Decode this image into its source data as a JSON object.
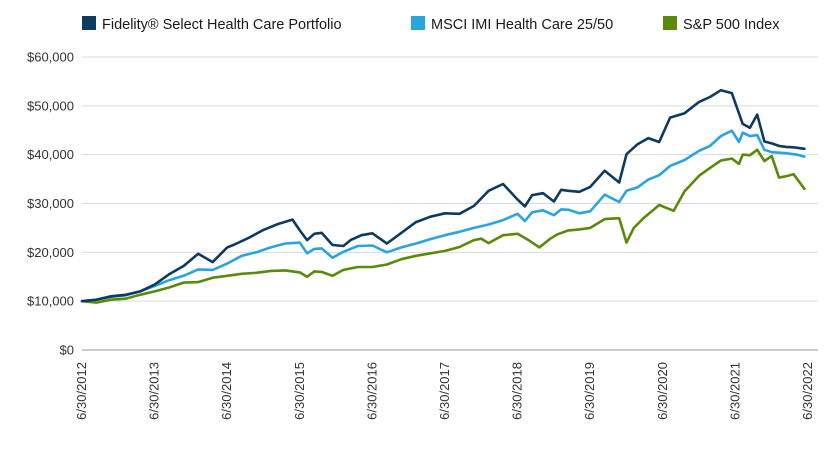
{
  "chart_data": {
    "type": "line",
    "title": "",
    "xlabel": "",
    "ylabel": "",
    "ylim": [
      0,
      60000
    ],
    "yticks": [
      0,
      10000,
      20000,
      30000,
      40000,
      50000,
      60000
    ],
    "yticklabels": [
      "$0",
      "$10,000",
      "$20,000",
      "$30,000",
      "$40,000",
      "$50,000",
      "$60,000"
    ],
    "xlim": [
      2012.5,
      2022.5
    ],
    "xticks": [
      2012.5,
      2013.5,
      2014.5,
      2015.5,
      2016.5,
      2017.5,
      2018.5,
      2019.5,
      2020.5,
      2021.5,
      2022.5
    ],
    "xticklabels": [
      "6/30/2012",
      "6/30/2013",
      "6/30/2014",
      "6/30/2015",
      "6/30/2016",
      "6/30/2017",
      "6/30/2018",
      "6/30/2019",
      "6/30/2020",
      "6/30/2021",
      "6/30/2022"
    ],
    "grid": true,
    "legend_position": "top",
    "series": [
      {
        "name": "Fidelity® Select Health Care Portfolio",
        "color": "#0d3b5f",
        "x": [
          2012.5,
          2012.7,
          2012.9,
          2013.1,
          2013.3,
          2013.5,
          2013.7,
          2013.9,
          2014.1,
          2014.3,
          2014.5,
          2014.6,
          2014.8,
          2015.0,
          2015.2,
          2015.4,
          2015.5,
          2015.6,
          2015.7,
          2015.8,
          2015.95,
          2016.1,
          2016.2,
          2016.35,
          2016.5,
          2016.7,
          2016.9,
          2017.1,
          2017.3,
          2017.5,
          2017.7,
          2017.9,
          2018.1,
          2018.3,
          2018.5,
          2018.6,
          2018.7,
          2018.85,
          2019.0,
          2019.1,
          2019.2,
          2019.35,
          2019.5,
          2019.7,
          2019.9,
          2020.0,
          2020.15,
          2020.3,
          2020.45,
          2020.6,
          2020.8,
          2021.0,
          2021.15,
          2021.3,
          2021.45,
          2021.6,
          2021.7,
          2021.8,
          2021.9,
          2022.0,
          2022.1,
          2022.2,
          2022.3,
          2022.45
        ],
        "values": [
          10000,
          10300,
          11000,
          11300,
          12000,
          13400,
          15500,
          17200,
          19700,
          18000,
          21000,
          21600,
          23000,
          24600,
          25800,
          26700,
          24500,
          22500,
          23800,
          24000,
          21500,
          21300,
          22500,
          23500,
          23900,
          21800,
          24000,
          26200,
          27300,
          28000,
          27900,
          29500,
          32600,
          34000,
          30800,
          29400,
          31700,
          32100,
          30400,
          32800,
          32600,
          32400,
          33400,
          36700,
          34300,
          40100,
          42100,
          43400,
          42600,
          47600,
          48500,
          50800,
          51800,
          53200,
          52600,
          46300,
          45500,
          48200,
          42700,
          42300,
          41800,
          41600,
          41500,
          41200
        ]
      },
      {
        "name": "MSCI IMI Health Care 25/50",
        "color": "#2aa4dc",
        "x": [
          2012.5,
          2012.7,
          2012.9,
          2013.1,
          2013.3,
          2013.5,
          2013.7,
          2013.9,
          2014.1,
          2014.3,
          2014.5,
          2014.7,
          2014.9,
          2015.1,
          2015.3,
          2015.5,
          2015.6,
          2015.7,
          2015.8,
          2015.95,
          2016.1,
          2016.3,
          2016.5,
          2016.7,
          2016.9,
          2017.1,
          2017.3,
          2017.5,
          2017.7,
          2017.9,
          2018.1,
          2018.3,
          2018.5,
          2018.6,
          2018.7,
          2018.85,
          2019.0,
          2019.1,
          2019.2,
          2019.35,
          2019.5,
          2019.7,
          2019.9,
          2020.0,
          2020.15,
          2020.3,
          2020.45,
          2020.6,
          2020.8,
          2021.0,
          2021.15,
          2021.3,
          2021.45,
          2021.55,
          2021.6,
          2021.7,
          2021.8,
          2021.9,
          2022.0,
          2022.2,
          2022.35,
          2022.45
        ],
        "values": [
          10000,
          10300,
          10900,
          11200,
          12000,
          13100,
          14300,
          15200,
          16500,
          16400,
          17700,
          19300,
          20000,
          21000,
          21800,
          22000,
          19800,
          20700,
          20800,
          18900,
          20100,
          21300,
          21400,
          20000,
          21000,
          21800,
          22700,
          23500,
          24200,
          25000,
          25700,
          26600,
          27900,
          26400,
          28200,
          28600,
          27600,
          28800,
          28700,
          28000,
          28400,
          31800,
          30300,
          32600,
          33300,
          34900,
          35800,
          37700,
          38900,
          40800,
          41800,
          43800,
          44900,
          42600,
          44500,
          43800,
          44000,
          41000,
          40500,
          40300,
          40000,
          39600
        ]
      },
      {
        "name": "S&P 500 Index",
        "color": "#5a8a0a",
        "x": [
          2012.5,
          2012.7,
          2012.9,
          2013.1,
          2013.3,
          2013.5,
          2013.7,
          2013.9,
          2014.1,
          2014.3,
          2014.5,
          2014.7,
          2014.9,
          2015.1,
          2015.3,
          2015.5,
          2015.6,
          2015.7,
          2015.8,
          2015.95,
          2016.1,
          2016.3,
          2016.5,
          2016.7,
          2016.9,
          2017.1,
          2017.3,
          2017.5,
          2017.7,
          2017.9,
          2018.0,
          2018.1,
          2018.3,
          2018.5,
          2018.65,
          2018.8,
          2018.95,
          2019.05,
          2019.2,
          2019.35,
          2019.5,
          2019.7,
          2019.9,
          2020.0,
          2020.1,
          2020.25,
          2020.45,
          2020.65,
          2020.8,
          2021.0,
          2021.15,
          2021.3,
          2021.45,
          2021.55,
          2021.6,
          2021.7,
          2021.8,
          2021.9,
          2022.0,
          2022.1,
          2022.2,
          2022.3,
          2022.45
        ],
        "values": [
          10000,
          9700,
          10300,
          10500,
          11300,
          12000,
          12800,
          13800,
          13900,
          14800,
          15200,
          15600,
          15800,
          16200,
          16300,
          15900,
          15000,
          16100,
          16000,
          15200,
          16400,
          17000,
          17000,
          17500,
          18600,
          19300,
          19800,
          20300,
          21100,
          22500,
          22800,
          21900,
          23500,
          23800,
          22500,
          21000,
          22800,
          23700,
          24500,
          24700,
          25000,
          26800,
          27000,
          22000,
          25000,
          27200,
          29700,
          28500,
          32500,
          35700,
          37300,
          38800,
          39200,
          38100,
          40000,
          39900,
          41000,
          38700,
          39700,
          35300,
          35600,
          36000,
          33000
        ]
      }
    ]
  }
}
